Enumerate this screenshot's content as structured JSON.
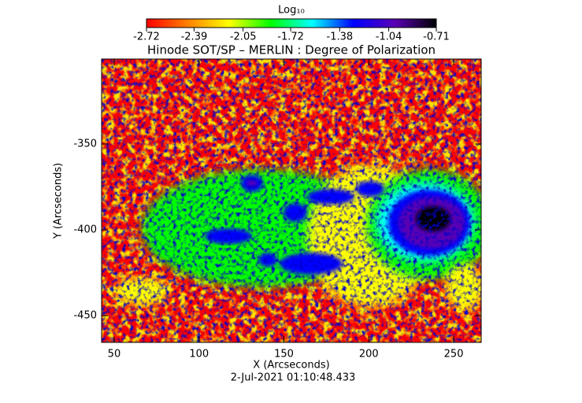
{
  "chart_data": {
    "type": "image",
    "title": "Hinode SOT/SP – MERLIN : Degree of Polarization",
    "xlabel": "X (Arcseconds)",
    "ylabel": "Y (Arcseconds)",
    "xlim": [
      42.6,
      266.2
    ],
    "ylim": [
      -465.6,
      -300.5
    ],
    "xticks": [
      50,
      100,
      150,
      200,
      250
    ],
    "yticks": [
      -450,
      -400,
      -350
    ],
    "colorbar": {
      "label": "Log₁₀",
      "lim": [
        -2.72,
        -0.71
      ],
      "ticks": [
        -2.72,
        -2.39,
        -2.05,
        -1.72,
        -1.38,
        -1.04,
        -0.71
      ],
      "colors": [
        "#ff0000",
        "#ff8000",
        "#ffff00",
        "#00ff00",
        "#00ffff",
        "#0000ff",
        "#5a00b4",
        "#000000"
      ]
    },
    "timestamp": "2-Jul-2021 01:10:48.433"
  }
}
